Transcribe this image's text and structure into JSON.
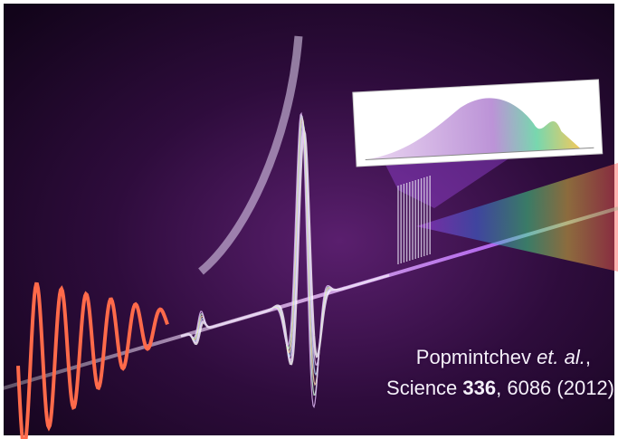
{
  "caption": {
    "line1": [
      "Popmintchev ",
      "et. al.",
      ","
    ],
    "line2": [
      "Science ",
      "336",
      ", 6086 (2012)"
    ]
  }
}
